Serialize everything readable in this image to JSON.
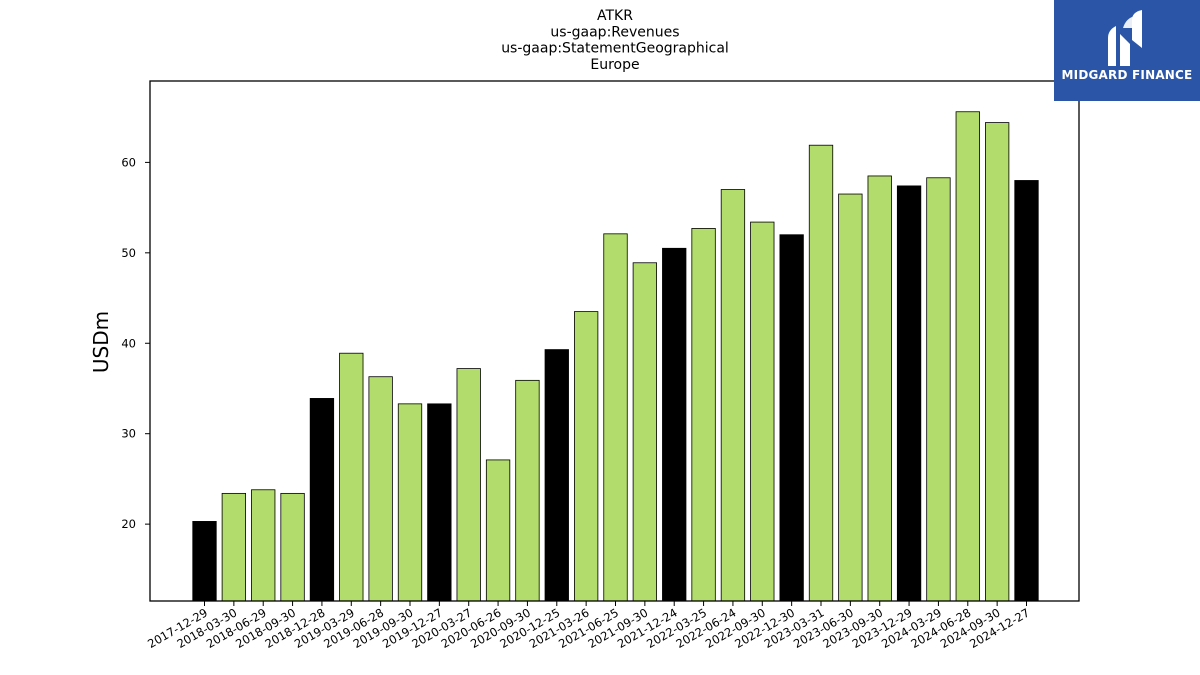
{
  "chart_data": {
    "type": "bar",
    "title_lines": [
      "ATKR",
      "us-gaap:Revenues",
      "us-gaap:StatementGeographical",
      "Europe"
    ],
    "ylabel": "USDm",
    "xlabel": "",
    "ylim": [
      11.5,
      69
    ],
    "yticks": [
      20,
      30,
      40,
      50,
      60
    ],
    "categories": [
      "2017-12-29",
      "2018-03-30",
      "2018-06-29",
      "2018-09-30",
      "2018-12-28",
      "2019-03-29",
      "2019-06-28",
      "2019-09-30",
      "2019-12-27",
      "2020-03-27",
      "2020-06-26",
      "2020-09-30",
      "2020-12-25",
      "2021-03-26",
      "2021-06-25",
      "2021-09-30",
      "2021-12-24",
      "2022-03-25",
      "2022-06-24",
      "2022-09-30",
      "2022-12-30",
      "2023-03-31",
      "2023-06-30",
      "2023-09-30",
      "2023-12-29",
      "2024-03-29",
      "2024-06-28",
      "2024-09-30",
      "2024-12-27"
    ],
    "values": [
      20.3,
      23.4,
      23.8,
      23.4,
      33.9,
      38.9,
      36.3,
      33.3,
      33.3,
      37.2,
      27.1,
      35.9,
      39.3,
      43.5,
      52.1,
      48.9,
      50.5,
      52.7,
      57.0,
      53.4,
      52.0,
      61.9,
      56.5,
      58.5,
      57.4,
      58.3,
      65.6,
      64.4,
      58.0
    ],
    "quarter_type": [
      "Q1",
      "Q2",
      "Q3",
      "Q4",
      "Q1",
      "Q2",
      "Q3",
      "Q4",
      "Q1",
      "Q2",
      "Q3",
      "Q4",
      "Q1",
      "Q2",
      "Q3",
      "Q4",
      "Q1",
      "Q2",
      "Q3",
      "Q4",
      "Q1",
      "Q2",
      "Q3",
      "Q4",
      "Q1",
      "Q2",
      "Q3",
      "Q4",
      "Q1"
    ],
    "colors": {
      "highlight": "#000000",
      "default": "#b2dc6b",
      "edge": "#000000"
    },
    "grid": false
  },
  "logo": {
    "text": "MIDGARD FINANCE",
    "background": "#2b55a6"
  }
}
